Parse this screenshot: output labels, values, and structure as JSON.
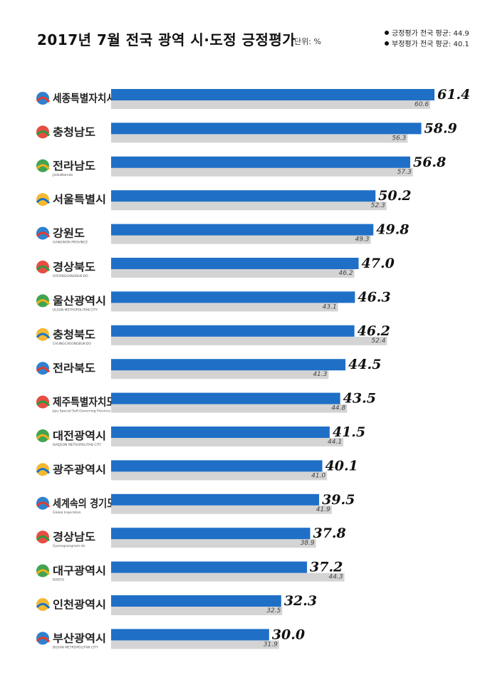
{
  "header": {
    "title": "2017년 7월 전국 광역 시·도정 긍정평가",
    "unit": "단위: %"
  },
  "legend": {
    "items": [
      "긍정평가 전국 평균: 44.9",
      "부정평가 전국 평균: 40.1"
    ]
  },
  "colors": {
    "positive_bar": "#1f6fc6",
    "negative_bar": "#d4d4d4",
    "logo_accent": [
      "#1a73c9",
      "#e33b2e",
      "#2e9a3e",
      "#f2b11c"
    ]
  },
  "chart_data": {
    "type": "bar",
    "orientation": "horizontal",
    "title": "2017년 7월 전국 광역 시·도정 긍정평가",
    "xlabel": "",
    "ylabel": "",
    "xlim": [
      0,
      61.4
    ],
    "grid": false,
    "legend": "top-right",
    "categories": [
      "세종특별자치시",
      "충청남도",
      "전라남도",
      "서울특별시",
      "강원도",
      "경상북도",
      "울산광역시",
      "충청북도",
      "전라북도",
      "제주특별자치도",
      "대전광역시",
      "광주광역시",
      "세계속의 경기도",
      "경상남도",
      "대구광역시",
      "인천광역시",
      "부산광역시"
    ],
    "logo_subtitles": [
      "",
      "",
      "JeollaNamdo",
      "",
      "GANGWON PROVINCE",
      "GYEONGSANGBUK-DO",
      "ULSAN METROPOLITAN CITY",
      "CHUNGCHEONGBUK-DO",
      "",
      "Jeju Special Self-Governing Province",
      "DAEJEON METROPOLITAN CITY",
      "",
      "Global Inspiration",
      "Gyeongsangnam-do",
      "DAEGU",
      "",
      "BUSAN METROPOLITAN CITY"
    ],
    "series": [
      {
        "name": "긍정평가",
        "values": [
          61.4,
          58.9,
          56.8,
          50.2,
          49.8,
          47.0,
          46.3,
          46.2,
          44.5,
          43.5,
          41.5,
          40.1,
          39.5,
          37.8,
          37.2,
          32.3,
          30.0
        ]
      },
      {
        "name": "부정평가",
        "values": [
          60.6,
          56.3,
          57.3,
          52.3,
          49.3,
          46.2,
          43.1,
          52.4,
          41.3,
          44.8,
          44.1,
          41.0,
          41.9,
          38.9,
          44.3,
          32.5,
          31.9
        ]
      }
    ],
    "value_labels_positive": [
      "61.4",
      "58.9",
      "56.8",
      "50.2",
      "49.8",
      "47.0",
      "46.3",
      "46.2",
      "44.5",
      "43.5",
      "41.5",
      "40.1",
      "39.5",
      "37.8",
      "37.2",
      "32.3",
      "30.0"
    ],
    "value_labels_negative": [
      "60.6",
      "56.3",
      "57.3",
      "52.3",
      "49.3",
      "46.2",
      "43.1",
      "52.4",
      "41.3",
      "44.8",
      "44.1",
      "41.0",
      "41.9",
      "38.9",
      "44.3",
      "32.5",
      "31.9"
    ]
  }
}
